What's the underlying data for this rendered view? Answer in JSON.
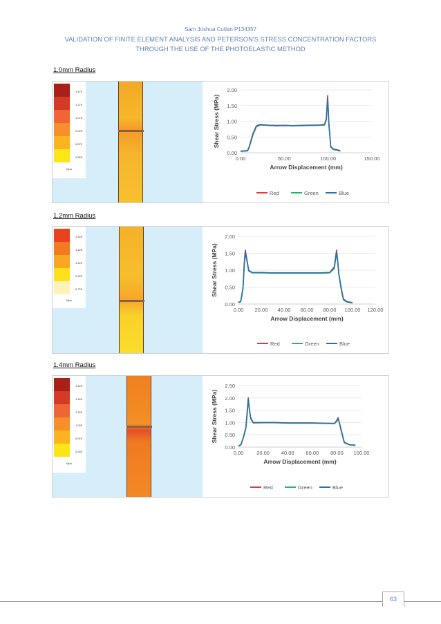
{
  "header": {
    "author": "Sam Joshua Cutlan P134357",
    "title_line1": "VALIDATION OF FINITE ELEMENT ANALYSIS AND PETERSON'S STRESS CONCENTRATION FACTORS",
    "title_line2": "THROUGH THE USE OF THE PHOTOELASTIC METHOD"
  },
  "page_number": "63",
  "colors": {
    "series_red": "#e23a3a",
    "series_green": "#27b56a",
    "series_blue": "#2a6fa8",
    "header_text": "#5b7fb9",
    "sim_background": "#d6eefa"
  },
  "figures": [
    {
      "label": "1.0mm Radius",
      "legend": {
        "values": [
          "1.475",
          "1.275",
          "1.075",
          "0.925",
          "0.875",
          "0.825"
        ],
        "unit": "Mpa"
      }
    },
    {
      "label": "1.2mm Radius",
      "legend": {
        "values": [
          "1.625",
          "1.425",
          "1.225",
          "0.925",
          "0.725"
        ],
        "unit": "Mpa"
      }
    },
    {
      "label": "1.4mm Radius",
      "legend": {
        "values": [
          "1.625",
          "1.425",
          "1.225",
          "1.025",
          "0.975",
          "0.925"
        ],
        "unit": "Mpa"
      }
    }
  ],
  "chart_data": [
    {
      "type": "line",
      "title": "",
      "xlabel": "Arrow Displacement (mm)",
      "ylabel": "Shear Stress (MPa)",
      "xlim": [
        0,
        150
      ],
      "ylim": [
        0,
        2
      ],
      "xticks": [
        "0.00",
        "50.00",
        "100.00",
        "150.00"
      ],
      "yticks": [
        "0.00",
        "0.50",
        "1.00",
        "1.50",
        "2.00"
      ],
      "legend_position": "bottom",
      "series": [
        {
          "name": "Red",
          "x": [
            0,
            8,
            10,
            14,
            18,
            22,
            30,
            40,
            50,
            60,
            70,
            80,
            90,
            96,
            98,
            99.5,
            101,
            103,
            106,
            110,
            114
          ],
          "y": [
            0.05,
            0.07,
            0.2,
            0.6,
            0.85,
            0.9,
            0.88,
            0.87,
            0.87,
            0.86,
            0.87,
            0.88,
            0.88,
            0.9,
            1.1,
            1.82,
            0.9,
            0.2,
            0.12,
            0.1,
            0.06
          ]
        },
        {
          "name": "Green",
          "x": [
            0,
            8,
            10,
            14,
            18,
            22,
            30,
            40,
            50,
            60,
            70,
            80,
            90,
            96,
            98,
            99.5,
            101,
            103,
            106,
            110,
            114
          ],
          "y": [
            0.04,
            0.06,
            0.18,
            0.55,
            0.82,
            0.88,
            0.87,
            0.86,
            0.86,
            0.86,
            0.86,
            0.87,
            0.87,
            0.88,
            1.05,
            1.7,
            0.88,
            0.18,
            0.1,
            0.08,
            0.05
          ]
        },
        {
          "name": "Blue",
          "x": [
            0,
            8,
            10,
            14,
            18,
            22,
            30,
            40,
            50,
            60,
            70,
            80,
            90,
            96,
            98,
            99.5,
            101,
            103,
            106,
            110,
            114
          ],
          "y": [
            0.05,
            0.06,
            0.19,
            0.58,
            0.84,
            0.89,
            0.88,
            0.86,
            0.87,
            0.86,
            0.87,
            0.87,
            0.88,
            0.89,
            1.08,
            1.75,
            0.89,
            0.19,
            0.11,
            0.09,
            0.06
          ]
        }
      ]
    },
    {
      "type": "line",
      "title": "",
      "xlabel": "Arrow Displacement (mm)",
      "ylabel": "Shear Stress (MPa)",
      "xlim": [
        0,
        120
      ],
      "ylim": [
        0,
        2
      ],
      "xticks": [
        "0.00",
        "20.00",
        "40.00",
        "60.00",
        "80.00",
        "100.00",
        "120.00"
      ],
      "yticks": [
        "0.00",
        "0.50",
        "1.00",
        "1.50",
        "2.00"
      ],
      "legend_position": "bottom",
      "series": [
        {
          "name": "Red",
          "x": [
            0,
            2,
            4,
            5,
            6,
            7,
            9,
            12,
            20,
            30,
            40,
            50,
            60,
            70,
            80,
            84,
            86,
            87,
            88,
            90,
            92,
            95,
            100
          ],
          "y": [
            0.05,
            0.08,
            0.5,
            1.2,
            1.6,
            1.4,
            1.0,
            0.93,
            0.93,
            0.92,
            0.92,
            0.92,
            0.92,
            0.92,
            0.93,
            1.1,
            1.6,
            1.3,
            0.9,
            0.5,
            0.15,
            0.08,
            0.04
          ]
        },
        {
          "name": "Green",
          "x": [
            0,
            2,
            4,
            5,
            6,
            7,
            9,
            12,
            20,
            30,
            40,
            50,
            60,
            70,
            80,
            84,
            86,
            87,
            88,
            90,
            92,
            95,
            100
          ],
          "y": [
            0.04,
            0.07,
            0.45,
            1.1,
            1.5,
            1.35,
            0.98,
            0.92,
            0.92,
            0.91,
            0.91,
            0.91,
            0.91,
            0.91,
            0.92,
            1.05,
            1.5,
            1.25,
            0.88,
            0.45,
            0.12,
            0.06,
            0.03
          ]
        },
        {
          "name": "Blue",
          "x": [
            0,
            2,
            4,
            5,
            6,
            7,
            9,
            12,
            20,
            30,
            40,
            50,
            60,
            70,
            80,
            84,
            86,
            87,
            88,
            90,
            92,
            95,
            100
          ],
          "y": [
            0.05,
            0.08,
            0.48,
            1.15,
            1.55,
            1.38,
            0.99,
            0.93,
            0.93,
            0.92,
            0.92,
            0.92,
            0.92,
            0.92,
            0.93,
            1.08,
            1.55,
            1.28,
            0.89,
            0.48,
            0.14,
            0.07,
            0.04
          ]
        }
      ]
    },
    {
      "type": "line",
      "title": "",
      "xlabel": "Arrow Displacement (mm)",
      "ylabel": "Shear Stress (MPa)",
      "xlim": [
        0,
        100
      ],
      "ylim": [
        0,
        2.5
      ],
      "xticks": [
        "0.00",
        "20.00",
        "40.00",
        "60.00",
        "80.00",
        "100.00"
      ],
      "yticks": [
        "0.00",
        "0.50",
        "1.00",
        "1.50",
        "2.00",
        "2.50"
      ],
      "legend_position": "bottom",
      "series": [
        {
          "name": "Red",
          "x": [
            0,
            2,
            4,
            6,
            7,
            8,
            9,
            10,
            12,
            20,
            30,
            40,
            50,
            60,
            70,
            78,
            80,
            81,
            82,
            84,
            86,
            90,
            95
          ],
          "y": [
            0.05,
            0.1,
            0.4,
            0.8,
            1.4,
            2.0,
            1.5,
            1.2,
            1.0,
            1.0,
            1.0,
            0.98,
            0.98,
            0.98,
            0.97,
            0.96,
            1.1,
            1.2,
            1.0,
            0.6,
            0.2,
            0.1,
            0.08
          ]
        },
        {
          "name": "Green",
          "x": [
            0,
            2,
            4,
            6,
            7,
            8,
            9,
            10,
            12,
            20,
            30,
            40,
            50,
            60,
            70,
            78,
            80,
            81,
            82,
            84,
            86,
            90,
            95
          ],
          "y": [
            0.04,
            0.09,
            0.38,
            0.75,
            1.3,
            1.9,
            1.45,
            1.15,
            0.98,
            0.99,
            0.99,
            0.97,
            0.97,
            0.97,
            0.96,
            0.95,
            1.05,
            1.15,
            0.98,
            0.55,
            0.18,
            0.09,
            0.07
          ]
        },
        {
          "name": "Blue",
          "x": [
            0,
            2,
            4,
            6,
            7,
            8,
            9,
            10,
            12,
            20,
            30,
            40,
            50,
            60,
            70,
            78,
            80,
            81,
            82,
            84,
            86,
            90,
            95
          ],
          "y": [
            0.05,
            0.1,
            0.39,
            0.78,
            1.35,
            1.95,
            1.48,
            1.18,
            0.99,
            1.0,
            1.0,
            0.98,
            0.98,
            0.98,
            0.97,
            0.96,
            1.08,
            1.18,
            0.99,
            0.58,
            0.19,
            0.1,
            0.08
          ]
        }
      ]
    }
  ]
}
